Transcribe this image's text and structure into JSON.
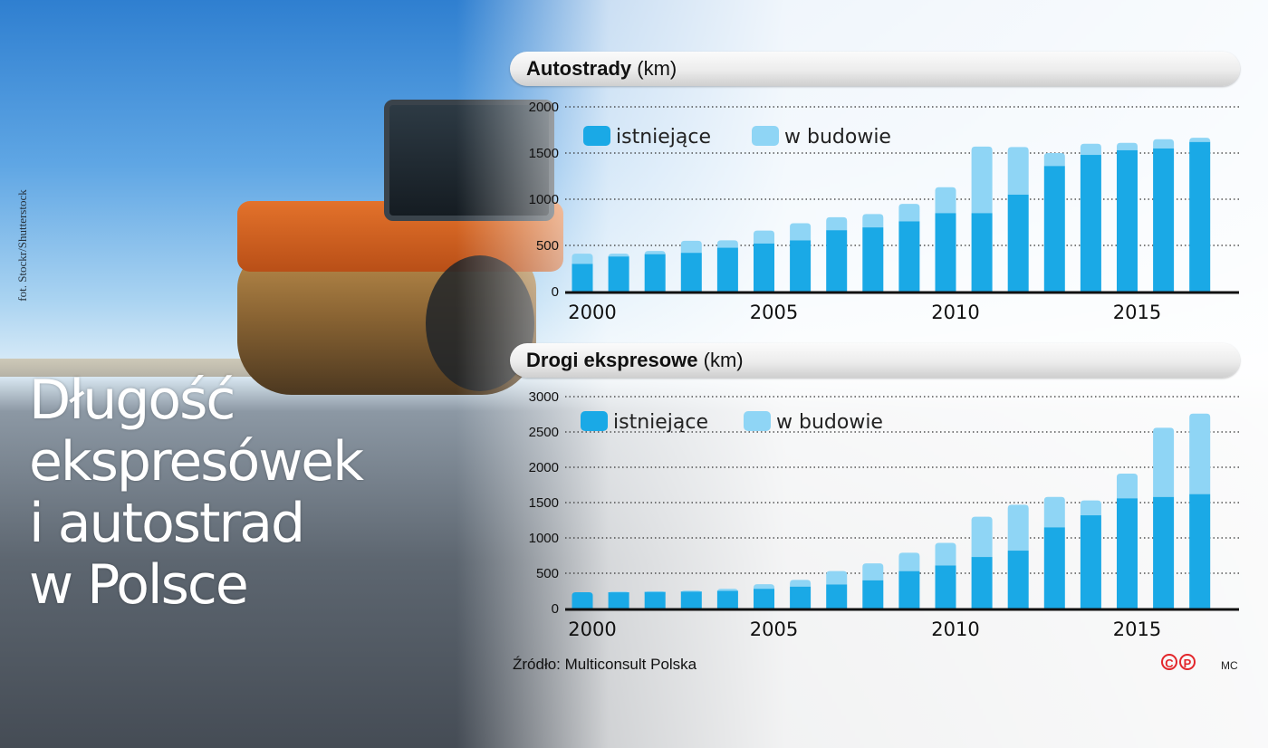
{
  "headline": [
    "Długość",
    "ekspresówek",
    "i autostrad",
    "w Polsce"
  ],
  "photo_credit": "fot. Stockr/Shutterstock",
  "source": "Źródło: Multiconsult Polska",
  "cp_letters": [
    "C",
    "P"
  ],
  "author": "MC",
  "colors": {
    "existing": "#1aa9e6",
    "under_construction": "#8fd5f5",
    "axis": "#111111",
    "grid": "#333333"
  },
  "chart_data": [
    {
      "type": "bar",
      "stacked": true,
      "title_bold": "Autostrady",
      "title_unit": "(km)",
      "x": [
        2000,
        2001,
        2002,
        2003,
        2004,
        2005,
        2006,
        2007,
        2008,
        2009,
        2010,
        2011,
        2012,
        2013,
        2014,
        2015,
        2016,
        2017
      ],
      "x_tick_labels": [
        "2000",
        "2005",
        "2010",
        "2015"
      ],
      "y_ticks": [
        0,
        500,
        1000,
        1500,
        2000
      ],
      "ylim": [
        0,
        2000
      ],
      "grid": "dotted",
      "legend": "top-left",
      "series": [
        {
          "name": "istniejące",
          "values": [
            300,
            380,
            405,
            420,
            475,
            520,
            555,
            665,
            695,
            760,
            850,
            850,
            1050,
            1360,
            1480,
            1530,
            1550,
            1620
          ]
        },
        {
          "name": "w budowie",
          "values": [
            110,
            30,
            35,
            130,
            80,
            140,
            185,
            140,
            145,
            190,
            280,
            720,
            515,
            140,
            120,
            80,
            100,
            45
          ]
        }
      ]
    },
    {
      "type": "bar",
      "stacked": true,
      "title_bold": "Drogi ekspresowe",
      "title_unit": "(km)",
      "x": [
        2000,
        2001,
        2002,
        2003,
        2004,
        2005,
        2006,
        2007,
        2008,
        2009,
        2010,
        2011,
        2012,
        2013,
        2014,
        2015,
        2016,
        2017
      ],
      "x_tick_labels": [
        "2000",
        "2005",
        "2010",
        "2015"
      ],
      "y_ticks": [
        0,
        500,
        1000,
        1500,
        2000,
        2500,
        3000
      ],
      "ylim": [
        0,
        3000
      ],
      "grid": "dotted",
      "legend": "top-left",
      "series": [
        {
          "name": "istniejące",
          "values": [
            230,
            230,
            235,
            240,
            250,
            280,
            310,
            340,
            400,
            530,
            610,
            730,
            820,
            1150,
            1320,
            1560,
            1580,
            1620
          ]
        },
        {
          "name": "w budowie",
          "values": [
            0,
            10,
            10,
            15,
            30,
            65,
            95,
            190,
            240,
            260,
            320,
            570,
            650,
            430,
            210,
            350,
            980,
            1140
          ]
        }
      ]
    }
  ]
}
